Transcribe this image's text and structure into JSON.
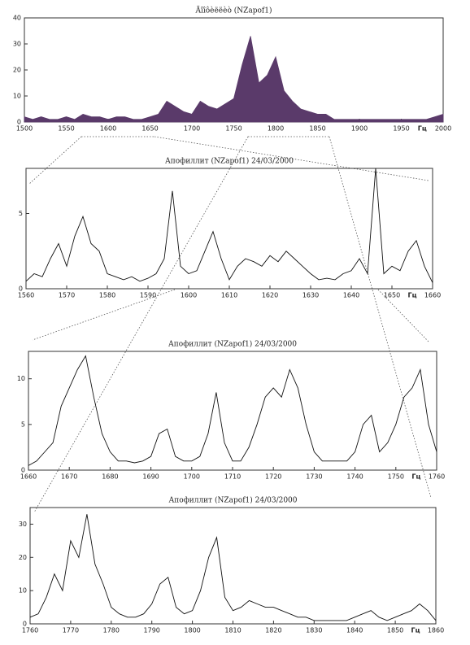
{
  "chart_data": [
    {
      "type": "area",
      "title": "Ãîîôèëëèò (NZapof1)",
      "x_label": "Гц",
      "color": "#5a3a6a",
      "x": [
        1500,
        1510,
        1520,
        1530,
        1540,
        1550,
        1560,
        1570,
        1580,
        1590,
        1600,
        1610,
        1620,
        1630,
        1640,
        1650,
        1660,
        1670,
        1680,
        1690,
        1700,
        1710,
        1720,
        1730,
        1740,
        1750,
        1760,
        1770,
        1780,
        1790,
        1800,
        1810,
        1820,
        1830,
        1840,
        1850,
        1860,
        1870,
        1880,
        1890,
        1900,
        1910,
        1920,
        1930,
        1940,
        1950,
        1960,
        1970,
        1980,
        1990,
        2000
      ],
      "values": [
        2,
        1,
        2,
        1,
        1,
        2,
        1,
        3,
        2,
        2,
        1,
        2,
        2,
        1,
        1,
        2,
        3,
        8,
        6,
        4,
        3,
        8,
        6,
        5,
        7,
        9,
        22,
        33,
        15,
        18,
        25,
        12,
        8,
        5,
        4,
        3,
        3,
        1,
        1,
        1,
        1,
        1,
        1,
        1,
        1,
        1,
        1,
        1,
        1,
        2,
        3
      ],
      "xlim": [
        1500,
        2000
      ],
      "xticks": [
        1500,
        1550,
        1600,
        1650,
        1700,
        1750,
        1800,
        1850,
        1900,
        1950,
        2000
      ],
      "ylim": [
        0,
        40
      ],
      "yticks": [
        0,
        10,
        20,
        30,
        40
      ]
    },
    {
      "type": "line",
      "title": "Апофиллит (NZapof1) 24/03/2000",
      "x_label": "Гц",
      "color": "#111111",
      "x": [
        1560,
        1562,
        1564,
        1566,
        1568,
        1570,
        1572,
        1574,
        1576,
        1578,
        1580,
        1582,
        1584,
        1586,
        1588,
        1590,
        1592,
        1594,
        1596,
        1598,
        1600,
        1602,
        1604,
        1606,
        1608,
        1610,
        1612,
        1614,
        1616,
        1618,
        1620,
        1622,
        1624,
        1626,
        1628,
        1630,
        1632,
        1634,
        1636,
        1638,
        1640,
        1642,
        1644,
        1646,
        1648,
        1650,
        1652,
        1654,
        1656,
        1658,
        1660
      ],
      "values": [
        0.5,
        1,
        0.8,
        2,
        3,
        1.5,
        3.5,
        4.8,
        3,
        2.5,
        1,
        0.8,
        0.6,
        0.8,
        0.5,
        0.7,
        1,
        2,
        6.5,
        1.5,
        1,
        1.2,
        2.5,
        3.8,
        2,
        0.6,
        1.5,
        2,
        1.8,
        1.5,
        2.2,
        1.8,
        2.5,
        2,
        1.5,
        1,
        0.6,
        0.7,
        0.6,
        1,
        1.2,
        2,
        1,
        8,
        1,
        1.5,
        1.2,
        2.5,
        3.2,
        1.5,
        0.4
      ],
      "xlim": [
        1560,
        1660
      ],
      "xticks": [
        1560,
        1570,
        1580,
        1590,
        1600,
        1610,
        1620,
        1630,
        1640,
        1650,
        1660
      ],
      "ylim": [
        0,
        8
      ],
      "yticks": [
        0,
        5
      ]
    },
    {
      "type": "line",
      "title": "Апофиллит (NZapof1) 24/03/2000",
      "x_label": "Гц",
      "color": "#111111",
      "x": [
        1660,
        1662,
        1664,
        1666,
        1668,
        1670,
        1672,
        1674,
        1676,
        1678,
        1680,
        1682,
        1684,
        1686,
        1688,
        1690,
        1692,
        1694,
        1696,
        1698,
        1700,
        1702,
        1704,
        1706,
        1708,
        1710,
        1712,
        1714,
        1716,
        1718,
        1720,
        1722,
        1724,
        1726,
        1728,
        1730,
        1732,
        1734,
        1736,
        1738,
        1740,
        1742,
        1744,
        1746,
        1748,
        1750,
        1752,
        1754,
        1756,
        1758,
        1760
      ],
      "values": [
        0.5,
        1,
        2,
        3,
        7,
        9,
        11,
        12.5,
        8,
        4,
        2,
        1,
        1,
        0.8,
        1,
        1.5,
        4,
        4.5,
        1.5,
        1,
        1,
        1.5,
        4,
        8.5,
        3,
        1,
        1,
        2.5,
        5,
        8,
        9,
        8,
        11,
        9,
        5,
        2,
        1,
        1,
        1,
        1,
        2,
        5,
        6,
        2,
        3,
        5,
        8,
        9,
        11,
        5,
        2
      ],
      "xlim": [
        1660,
        1760
      ],
      "xticks": [
        1660,
        1670,
        1680,
        1690,
        1700,
        1710,
        1720,
        1730,
        1740,
        1750,
        1760
      ],
      "ylim": [
        0,
        13
      ],
      "yticks": [
        0,
        5,
        10
      ]
    },
    {
      "type": "line",
      "title": "Апофиллит (NZapof1) 24/03/2000",
      "x_label": "Гц",
      "color": "#111111",
      "x": [
        1760,
        1762,
        1764,
        1766,
        1768,
        1770,
        1772,
        1774,
        1776,
        1778,
        1780,
        1782,
        1784,
        1786,
        1788,
        1790,
        1792,
        1794,
        1796,
        1798,
        1800,
        1802,
        1804,
        1806,
        1808,
        1810,
        1812,
        1814,
        1816,
        1818,
        1820,
        1822,
        1824,
        1826,
        1828,
        1830,
        1832,
        1834,
        1836,
        1838,
        1840,
        1842,
        1844,
        1846,
        1848,
        1850,
        1852,
        1854,
        1856,
        1858,
        1860
      ],
      "values": [
        2,
        3,
        8,
        15,
        10,
        25,
        20,
        33,
        18,
        12,
        5,
        3,
        2,
        2,
        3,
        6,
        12,
        14,
        5,
        3,
        4,
        10,
        20,
        26,
        8,
        4,
        5,
        7,
        6,
        5,
        5,
        4,
        3,
        2,
        2,
        1,
        1,
        1,
        1,
        1,
        2,
        3,
        4,
        2,
        1,
        2,
        3,
        4,
        6,
        4,
        1
      ],
      "xlim": [
        1760,
        1860
      ],
      "xticks": [
        1760,
        1770,
        1780,
        1790,
        1800,
        1810,
        1820,
        1830,
        1840,
        1850,
        1860
      ],
      "ylim": [
        0,
        35
      ],
      "yticks": [
        0,
        10,
        20,
        30
      ]
    }
  ]
}
